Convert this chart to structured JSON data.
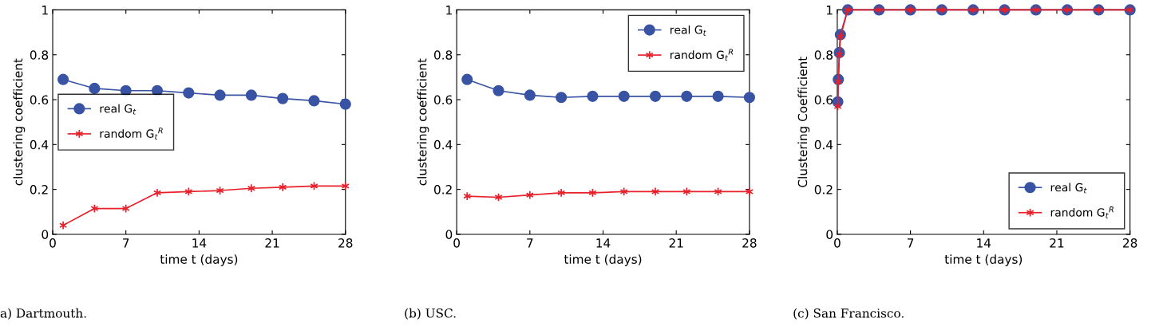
{
  "chart_data": [
    {
      "type": "line",
      "xlabel": "time t (days)",
      "ylabel": "clustering coefficient",
      "x": [
        1,
        4,
        7,
        10,
        13,
        16,
        19,
        22,
        25,
        28
      ],
      "series": [
        {
          "name": "real G$_{t}$",
          "color": "#3953a4",
          "marker": "circle",
          "values": [
            0.69,
            0.65,
            0.64,
            0.64,
            0.63,
            0.62,
            0.62,
            0.605,
            0.595,
            0.58
          ]
        },
        {
          "name": "random G$_{t}$$^{R}$",
          "color": "#e8202a",
          "marker": "cross",
          "values": [
            0.04,
            0.115,
            0.115,
            0.185,
            0.19,
            0.195,
            0.205,
            0.21,
            0.215,
            0.215
          ]
        }
      ],
      "xlim": [
        0,
        28
      ],
      "xticks": [
        0,
        7,
        14,
        21,
        28
      ],
      "ylim": [
        0,
        1
      ],
      "yticks": [
        0,
        0.2,
        0.4,
        0.6,
        0.8,
        1
      ],
      "grid": false,
      "legend": "left",
      "annotations": [
        "a) Dartmouth."
      ]
    },
    {
      "type": "line",
      "xlabel": "time t (days)",
      "ylabel": "clustering coefficient",
      "x": [
        1,
        4,
        7,
        10,
        13,
        16,
        19,
        22,
        25,
        28
      ],
      "series": [
        {
          "name": "real G$_{t}$",
          "color": "#3953a4",
          "marker": "circle",
          "values": [
            0.69,
            0.64,
            0.62,
            0.61,
            0.615,
            0.615,
            0.615,
            0.615,
            0.615,
            0.61
          ]
        },
        {
          "name": "random G$_{t}$$^{R}$",
          "color": "#e8202a",
          "marker": "cross",
          "values": [
            0.17,
            0.165,
            0.175,
            0.185,
            0.185,
            0.19,
            0.19,
            0.19,
            0.19,
            0.19
          ]
        }
      ],
      "xlim": [
        0,
        28
      ],
      "xticks": [
        0,
        7,
        14,
        21,
        28
      ],
      "ylim": [
        0,
        1
      ],
      "yticks": [
        0,
        0.2,
        0.4,
        0.6,
        0.8,
        1
      ],
      "grid": false,
      "legend": "top right",
      "annotations": [
        "(b) USC."
      ]
    },
    {
      "type": "line",
      "xlabel": "time t (days)",
      "ylabel": "Clustering Coefficient",
      "x": [
        0.05,
        0.1,
        0.2,
        0.3,
        1,
        4,
        7,
        10,
        13,
        16,
        19,
        22,
        25,
        28
      ],
      "series": [
        {
          "name": "real G$_{t}$",
          "color": "#3953a4",
          "marker": "circle",
          "values": [
            0.59,
            0.69,
            0.81,
            0.89,
            1,
            1,
            1,
            1,
            1,
            1,
            1,
            1,
            1,
            1
          ]
        },
        {
          "name": "random G$_{t}$$^{R}$",
          "color": "#e8202a",
          "marker": "cross",
          "values": [
            0.57,
            0.68,
            0.8,
            0.88,
            1,
            1,
            1,
            1,
            1,
            1,
            1,
            1,
            1,
            1
          ]
        }
      ],
      "xlim": [
        0,
        28
      ],
      "xticks": [
        0,
        7,
        14,
        21,
        28
      ],
      "ylim": [
        0,
        1
      ],
      "yticks": [
        0,
        0.2,
        0.4,
        0.6,
        0.8,
        1
      ],
      "grid": false,
      "legend": "bottom right",
      "annotations": [
        "(c) San Francisco."
      ]
    }
  ]
}
